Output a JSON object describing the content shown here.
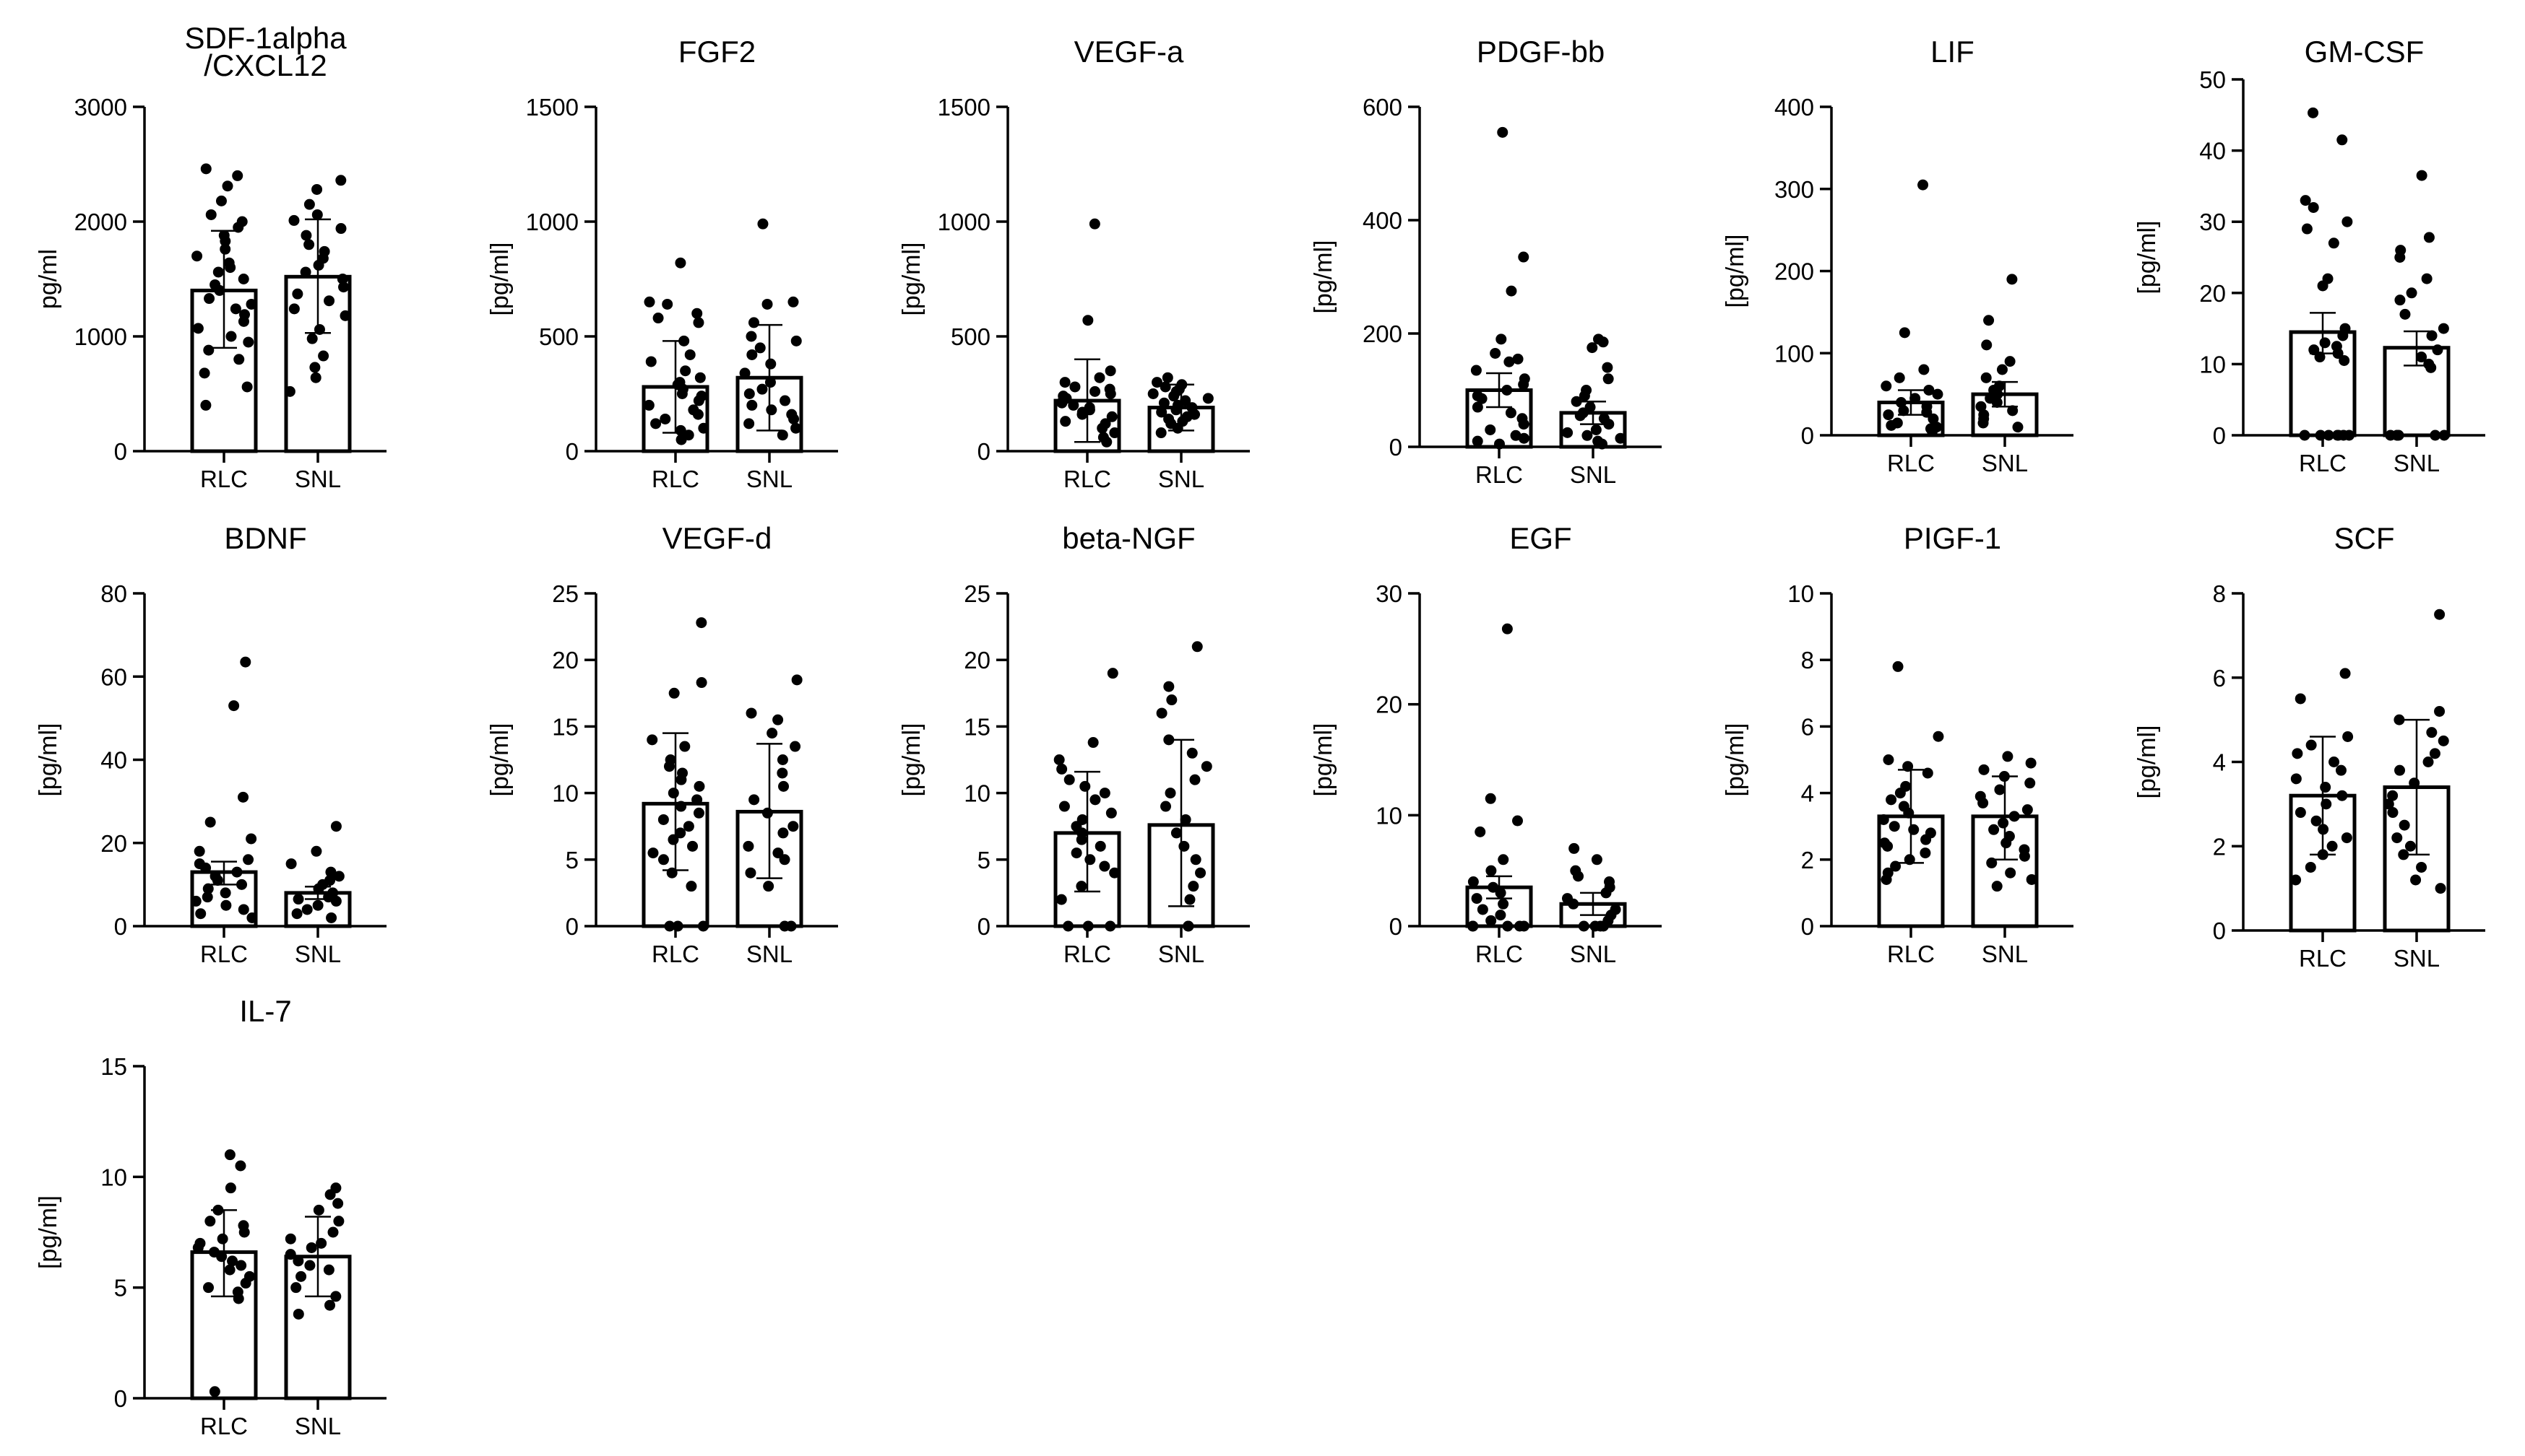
{
  "figure": {
    "colors": {
      "ink": "#000000",
      "bar_fill": "#ffffff",
      "background": "#ffffff"
    }
  },
  "chart_data": [
    {
      "type": "bar",
      "title": "SDF-1alpha\n/CXCL12",
      "ylabel": "pg/ml",
      "ylim": [
        0,
        3000
      ],
      "yticks": [
        "0",
        "1000",
        "2000",
        "3000"
      ],
      "categories": [
        "RLC",
        "SNL"
      ],
      "values": [
        1400,
        1520
      ],
      "error": [
        [
          900,
          1920
        ],
        [
          1030,
          2020
        ]
      ],
      "points": [
        [
          2460,
          2400,
          2310,
          2180,
          2060,
          2000,
          1950,
          1880,
          1830,
          1760,
          1700,
          1640,
          1600,
          1560,
          1500,
          1450,
          1400,
          1330,
          1280,
          1240,
          1190,
          1130,
          1070,
          1000,
          950,
          880,
          800,
          680,
          560,
          400
        ],
        [
          2360,
          2280,
          2150,
          2060,
          2010,
          1940,
          1880,
          1800,
          1740,
          1680,
          1620,
          1560,
          1500,
          1430,
          1370,
          1310,
          1240,
          1180,
          1060,
          980,
          830,
          730,
          640,
          520
        ]
      ]
    },
    {
      "type": "bar",
      "title": "FGF2",
      "ylabel": "[pg/ml]",
      "ylim": [
        0,
        1500
      ],
      "yticks": [
        "0",
        "500",
        "1000",
        "1500"
      ],
      "categories": [
        "RLC",
        "SNL"
      ],
      "values": [
        280,
        320
      ],
      "error": [
        [
          80,
          480
        ],
        [
          90,
          550
        ]
      ],
      "points": [
        [
          820,
          650,
          640,
          600,
          580,
          560,
          480,
          420,
          390,
          350,
          320,
          300,
          290,
          270,
          250,
          240,
          220,
          200,
          180,
          160,
          140,
          120,
          100,
          90,
          70,
          50
        ],
        [
          990,
          650,
          640,
          560,
          500,
          480,
          450,
          420,
          380,
          340,
          300,
          270,
          250,
          220,
          200,
          180,
          160,
          140,
          120,
          100,
          70
        ]
      ]
    },
    {
      "type": "bar",
      "title": "VEGF-a",
      "ylabel": "[pg/ml]",
      "ylim": [
        0,
        1500
      ],
      "yticks": [
        "0",
        "500",
        "1000",
        "1500"
      ],
      "categories": [
        "RLC",
        "SNL"
      ],
      "values": [
        220,
        190
      ],
      "error": [
        [
          40,
          400
        ],
        [
          90,
          290
        ]
      ],
      "points": [
        [
          990,
          570,
          350,
          320,
          300,
          280,
          270,
          260,
          250,
          240,
          230,
          220,
          210,
          200,
          190,
          180,
          170,
          160,
          150,
          130,
          120,
          100,
          80,
          60,
          40
        ],
        [
          320,
          300,
          290,
          280,
          270,
          260,
          250,
          240,
          230,
          220,
          210,
          200,
          190,
          180,
          170,
          160,
          150,
          140,
          130,
          120,
          100,
          80
        ]
      ]
    },
    {
      "type": "bar",
      "title": "PDGF-bb",
      "ylabel": "[pg/ml]",
      "ylim": [
        0,
        600
      ],
      "yticks": [
        "0",
        "200",
        "400",
        "600"
      ],
      "categories": [
        "RLC",
        "SNL"
      ],
      "values": [
        100,
        60
      ],
      "error": [
        [
          70,
          130
        ],
        [
          40,
          80
        ]
      ],
      "points": [
        [
          555,
          335,
          275,
          190,
          165,
          155,
          150,
          135,
          120,
          110,
          100,
          90,
          85,
          70,
          60,
          50,
          40,
          30,
          20,
          15,
          10,
          5
        ],
        [
          190,
          185,
          175,
          140,
          120,
          100,
          90,
          80,
          70,
          60,
          55,
          50,
          40,
          30,
          25,
          20,
          15,
          10,
          5
        ]
      ]
    },
    {
      "type": "bar",
      "title": "LIF",
      "ylabel": "[pg/ml]",
      "ylim": [
        0,
        400
      ],
      "yticks": [
        "0",
        "100",
        "200",
        "300",
        "400"
      ],
      "categories": [
        "RLC",
        "SNL"
      ],
      "values": [
        40,
        50
      ],
      "error": [
        [
          25,
          55
        ],
        [
          35,
          65
        ]
      ],
      "points": [
        [
          305,
          125,
          80,
          70,
          60,
          55,
          50,
          45,
          40,
          35,
          30,
          28,
          25,
          20,
          15,
          12,
          10,
          8,
          5
        ],
        [
          190,
          140,
          110,
          90,
          80,
          70,
          60,
          55,
          50,
          45,
          40,
          35,
          30,
          25,
          20,
          15,
          10
        ]
      ]
    },
    {
      "type": "bar",
      "title": "GM-CSF",
      "ylabel": "[pg/ml]",
      "ylim": [
        0,
        50
      ],
      "yticks": [
        "0",
        "10",
        "20",
        "30",
        "40",
        "50"
      ],
      "categories": [
        "RLC",
        "SNL"
      ],
      "values": [
        14.5,
        12.3
      ],
      "error": [
        [
          11.5,
          17.2
        ],
        [
          9.8,
          14.6
        ]
      ],
      "points": [
        [
          45.3,
          41.5,
          33.0,
          32.0,
          30.0,
          29.0,
          27.0,
          22.0,
          21.0,
          15.0,
          14.0,
          13.0,
          12.5,
          12.0,
          11.5,
          11.0,
          10.5,
          0,
          0,
          0,
          0,
          0,
          0,
          0
        ],
        [
          36.5,
          27.8,
          26.0,
          25.0,
          22.0,
          20.0,
          19.0,
          17.0,
          15.0,
          14.0,
          12.0,
          11.0,
          10.0,
          9.5,
          0,
          0,
          0,
          0,
          0,
          0
        ]
      ]
    },
    {
      "type": "bar",
      "title": "BDNF",
      "ylabel": "[pg/ml]",
      "ylim": [
        0,
        80
      ],
      "yticks": [
        "0",
        "20",
        "40",
        "60",
        "80"
      ],
      "categories": [
        "RLC",
        "SNL"
      ],
      "values": [
        13.0,
        8.0
      ],
      "error": [
        [
          10.0,
          15.5
        ],
        [
          6.5,
          9.5
        ]
      ],
      "points": [
        [
          63.5,
          53.0,
          31.0,
          25.0,
          21.0,
          18.0,
          16.0,
          15.0,
          14.0,
          13.0,
          12.0,
          11.0,
          10.0,
          9.0,
          8.0,
          7.0,
          6.0,
          5.0,
          4.0,
          3.0,
          2.0
        ],
        [
          24.0,
          18.0,
          15.0,
          13.0,
          12.0,
          11.0,
          10.0,
          9.0,
          8.0,
          7.0,
          6.5,
          6.0,
          5.0,
          4.0,
          3.0,
          2.0
        ]
      ]
    },
    {
      "type": "bar",
      "title": "VEGF-d",
      "ylabel": "[pg/ml]",
      "ylim": [
        0,
        25
      ],
      "yticks": [
        "0",
        "5",
        "10",
        "15",
        "20",
        "25"
      ],
      "categories": [
        "RLC",
        "SNL"
      ],
      "values": [
        9.2,
        8.6
      ],
      "error": [
        [
          4.2,
          14.5
        ],
        [
          3.6,
          13.7
        ]
      ],
      "points": [
        [
          22.8,
          18.3,
          17.5,
          14.0,
          13.5,
          12.5,
          12.0,
          11.5,
          11.0,
          10.5,
          10.0,
          9.5,
          9.0,
          8.5,
          8.0,
          7.5,
          7.0,
          6.5,
          6.0,
          5.5,
          5.0,
          4.0,
          3.0,
          0,
          0,
          0
        ],
        [
          18.5,
          16.0,
          15.5,
          14.5,
          13.5,
          12.5,
          11.5,
          10.5,
          9.5,
          8.5,
          7.5,
          7.0,
          6.0,
          5.5,
          5.0,
          4.0,
          3.0,
          0,
          0
        ]
      ]
    },
    {
      "type": "bar",
      "title": "beta-NGF",
      "ylabel": "[pg/ml]",
      "ylim": [
        0,
        25
      ],
      "yticks": [
        "0",
        "5",
        "10",
        "15",
        "20",
        "25"
      ],
      "categories": [
        "RLC",
        "SNL"
      ],
      "values": [
        7.0,
        7.6
      ],
      "error": [
        [
          2.6,
          11.6
        ],
        [
          1.5,
          14.0
        ]
      ],
      "points": [
        [
          19.0,
          13.8,
          12.5,
          11.8,
          11.0,
          10.5,
          10.0,
          9.5,
          9.0,
          8.5,
          8.0,
          7.5,
          7.0,
          6.5,
          6.0,
          5.5,
          5.0,
          4.5,
          4.0,
          3.0,
          2.0,
          0,
          0,
          0
        ],
        [
          21.0,
          18.0,
          17.0,
          16.0,
          14.0,
          13.0,
          12.0,
          11.0,
          10.0,
          9.0,
          8.0,
          7.0,
          6.0,
          5.0,
          4.0,
          3.0,
          2.0,
          0,
          0
        ]
      ]
    },
    {
      "type": "bar",
      "title": "EGF",
      "ylabel": "[pg/ml]",
      "ylim": [
        0,
        30
      ],
      "yticks": [
        "0",
        "10",
        "20",
        "30"
      ],
      "categories": [
        "RLC",
        "SNL"
      ],
      "values": [
        3.5,
        2.0
      ],
      "error": [
        [
          2.5,
          4.5
        ],
        [
          1.0,
          3.0
        ]
      ],
      "points": [
        [
          26.8,
          11.5,
          9.5,
          8.5,
          6.0,
          5.0,
          4.0,
          3.5,
          3.0,
          2.5,
          2.0,
          1.5,
          1.0,
          0.5,
          0,
          0,
          0,
          0,
          0
        ],
        [
          7.0,
          6.0,
          5.0,
          4.5,
          4.0,
          3.5,
          3.0,
          2.5,
          2.0,
          1.5,
          1.0,
          0.5,
          0,
          0,
          0,
          0
        ]
      ]
    },
    {
      "type": "bar",
      "title": "PIGF-1",
      "ylabel": "[pg/ml]",
      "ylim": [
        0,
        10
      ],
      "yticks": [
        "0",
        "2",
        "4",
        "6",
        "8",
        "10"
      ],
      "categories": [
        "RLC",
        "SNL"
      ],
      "values": [
        3.3,
        3.3
      ],
      "error": [
        [
          1.9,
          4.7
        ],
        [
          2.0,
          4.5
        ]
      ],
      "points": [
        [
          7.8,
          5.7,
          5.0,
          4.8,
          4.6,
          4.2,
          4.0,
          3.8,
          3.6,
          3.4,
          3.2,
          3.0,
          2.9,
          2.8,
          2.6,
          2.5,
          2.4,
          2.2,
          2.0,
          1.8,
          1.6,
          1.4
        ],
        [
          5.1,
          4.9,
          4.7,
          4.5,
          4.3,
          4.1,
          3.9,
          3.7,
          3.5,
          3.3,
          3.1,
          2.9,
          2.7,
          2.5,
          2.3,
          2.1,
          1.9,
          1.6,
          1.4,
          1.2
        ]
      ]
    },
    {
      "type": "bar",
      "title": "SCF",
      "ylabel": "[pg/ml]",
      "ylim": [
        0,
        8
      ],
      "yticks": [
        "0",
        "2",
        "4",
        "6",
        "8"
      ],
      "categories": [
        "RLC",
        "SNL"
      ],
      "values": [
        3.2,
        3.4
      ],
      "error": [
        [
          1.8,
          4.6
        ],
        [
          1.8,
          5.0
        ]
      ],
      "points": [
        [
          6.1,
          5.5,
          4.6,
          4.4,
          4.2,
          4.0,
          3.8,
          3.6,
          3.4,
          3.2,
          3.0,
          2.8,
          2.6,
          2.4,
          2.2,
          2.0,
          1.8,
          1.5,
          1.2
        ],
        [
          7.5,
          5.2,
          5.0,
          4.7,
          4.5,
          4.2,
          4.0,
          3.8,
          3.5,
          3.2,
          3.0,
          2.8,
          2.5,
          2.2,
          2.0,
          1.8,
          1.5,
          1.2,
          1.0
        ]
      ]
    },
    {
      "type": "bar",
      "title": "IL-7",
      "ylabel": "[pg/ml]",
      "ylim": [
        0,
        15
      ],
      "yticks": [
        "0",
        "5",
        "10",
        "15"
      ],
      "categories": [
        "RLC",
        "SNL"
      ],
      "values": [
        6.6,
        6.4
      ],
      "error": [
        [
          4.6,
          8.5
        ],
        [
          4.6,
          8.2
        ]
      ],
      "points": [
        [
          11.0,
          10.5,
          9.5,
          8.5,
          8.0,
          7.8,
          7.5,
          7.2,
          7.0,
          6.8,
          6.6,
          6.4,
          6.2,
          6.0,
          5.8,
          5.5,
          5.2,
          5.0,
          4.8,
          4.5,
          0.3
        ],
        [
          9.5,
          9.2,
          8.8,
          8.5,
          8.0,
          7.5,
          7.2,
          7.0,
          6.8,
          6.5,
          6.2,
          6.0,
          5.8,
          5.5,
          5.0,
          4.6,
          4.2,
          3.8
        ]
      ]
    }
  ]
}
